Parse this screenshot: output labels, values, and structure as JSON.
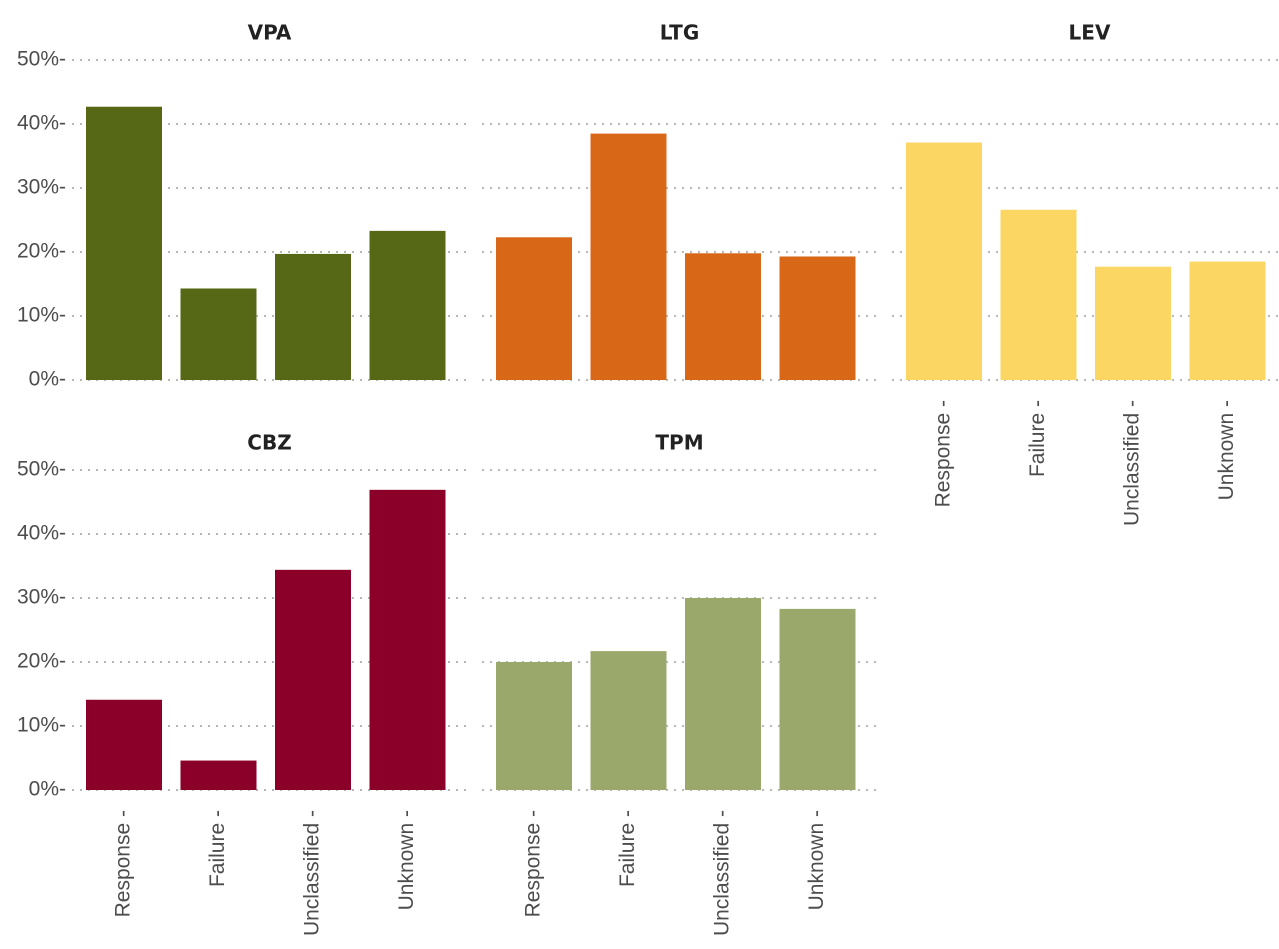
{
  "chart_data": {
    "type": "bar",
    "categories": [
      "Response",
      "Failure",
      "Unclassified",
      "Unknown"
    ],
    "ylim": [
      0,
      50
    ],
    "yticks": [
      0,
      10,
      20,
      30,
      40,
      50
    ],
    "ytick_labels": [
      "0%",
      "10%",
      "20%",
      "30%",
      "40%",
      "50%"
    ],
    "xtick_labels": [
      "Response -",
      "Failure -",
      "Unclassified -",
      "Unknown -"
    ],
    "ytick_suffix": "-",
    "grid": true,
    "panels": [
      {
        "title": "VPA",
        "color": "#566716",
        "values": [
          42.7,
          14.3,
          19.7,
          23.3
        ]
      },
      {
        "title": "LTG",
        "color": "#d96718",
        "values": [
          22.3,
          38.5,
          19.8,
          19.3
        ]
      },
      {
        "title": "LEV",
        "color": "#fbd662",
        "values": [
          37.1,
          26.6,
          17.7,
          18.5
        ]
      },
      {
        "title": "CBZ",
        "color": "#8b0029",
        "values": [
          14.1,
          4.6,
          34.4,
          46.9
        ]
      },
      {
        "title": "TPM",
        "color": "#9aa96b",
        "values": [
          20.0,
          21.7,
          30.0,
          28.3
        ]
      }
    ]
  }
}
